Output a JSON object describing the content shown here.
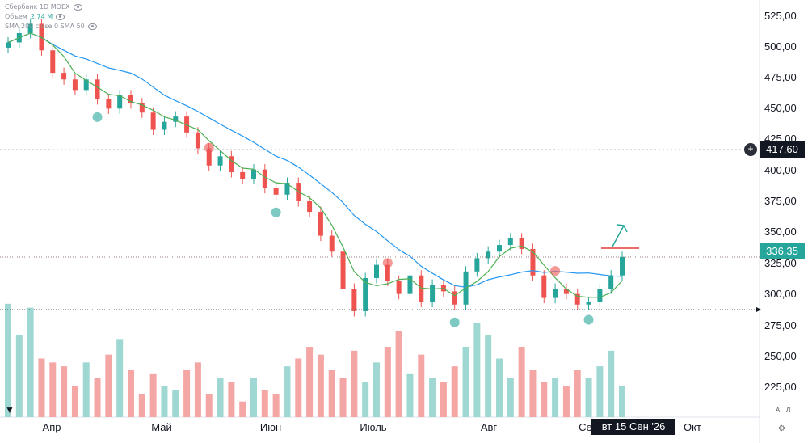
{
  "legend": {
    "main_label": "Сбербанк 1D MOEX",
    "volume_label": "Объем",
    "volume_value": "2,74 M",
    "sma_label": "SMA 200 close 0 SMA 50"
  },
  "axis": {
    "price_ticks": [
      "525,00",
      "500,00",
      "475,00",
      "450,00",
      "425,00",
      "400,00",
      "375,00",
      "350,00",
      "325,00",
      "300,00",
      "275,00",
      "250,00",
      "225,00"
    ],
    "months": [
      "Апр",
      "Май",
      "Июн",
      "Июль",
      "Авг",
      "Сен",
      "Окт"
    ],
    "corner_a": "A",
    "corner_l": "Л"
  },
  "crosshair": {
    "price_label": "417,60",
    "date_label": "вт 15 Сен '26"
  },
  "last_price": {
    "label": "336,35"
  },
  "colors": {
    "up": "#26a69a",
    "down": "#ef5350",
    "up_volume": "#9fd8d2",
    "down_volume": "#f3a6a4",
    "sma_fast": "#4caf50",
    "sma_slow": "#2196f3",
    "crosshair_badge": "#131722",
    "price_badge": "#26a69a"
  },
  "icons": {
    "eye": "eye-icon",
    "plus": "plus-circle-icon",
    "settings": "settings-icon",
    "logo": "tradingview-logo"
  },
  "chart_data": {
    "type": "candlestick",
    "ylim": [
      215,
      530
    ],
    "last_price": 336.35,
    "crosshair_price": 417.6,
    "crosshair_date": "2026-09-15",
    "x": [
      "Апр",
      "Май",
      "Июн",
      "Июль",
      "Авг",
      "Сен",
      "Окт"
    ],
    "close_path": [
      498,
      505,
      512,
      492,
      475,
      470,
      462,
      470,
      455,
      448,
      458,
      452,
      445,
      432,
      438,
      442,
      430,
      418,
      405,
      412,
      400,
      395,
      402,
      388,
      383,
      392,
      378,
      370,
      352,
      340,
      312,
      295,
      320,
      330,
      318,
      308,
      322,
      302,
      315,
      310,
      300,
      325,
      335,
      340,
      345,
      350,
      342,
      322,
      305,
      312,
      308,
      300,
      302,
      312,
      322,
      336
    ],
    "volume_path": [
      2.9,
      2.1,
      2.8,
      1.5,
      1.4,
      1.3,
      0.8,
      1.4,
      1.0,
      1.6,
      2.0,
      1.2,
      0.6,
      1.1,
      0.8,
      0.7,
      1.2,
      1.4,
      0.6,
      1.0,
      0.9,
      0.4,
      1.0,
      0.7,
      0.6,
      1.3,
      1.5,
      1.8,
      1.6,
      1.2,
      1.0,
      1.7,
      0.9,
      1.4,
      1.8,
      2.2,
      1.1,
      1.6,
      1.0,
      0.9,
      1.3,
      1.8,
      2.4,
      2.1,
      1.5,
      1.0,
      1.8,
      1.2,
      0.9,
      1.0,
      0.8,
      1.2,
      1.0,
      1.3,
      1.7,
      0.8
    ]
  }
}
